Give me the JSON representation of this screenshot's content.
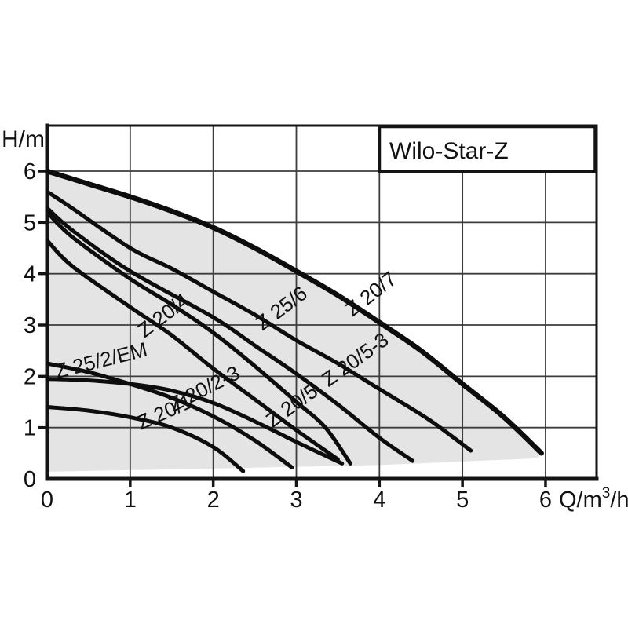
{
  "title_box": {
    "label": "Wilo-Star-Z"
  },
  "axes": {
    "y_axis_label": "H/m",
    "x_axis_unit_pre": "Q/m",
    "x_axis_unit_sup": "3",
    "x_axis_unit_post": "/h"
  },
  "colors": {
    "background": "#ffffff",
    "shade": "#e4e4e4",
    "grid": "#3c3c3c",
    "border": "#141414",
    "curve": "#0d0d0d",
    "text": "#111111"
  },
  "chart_data": {
    "type": "line",
    "title": "Wilo-Star-Z",
    "xlabel": "Q/m³/h",
    "ylabel": "H/m",
    "xlim": [
      0,
      6.61
    ],
    "ylim": [
      0,
      6.89
    ],
    "grid": true,
    "x_ticks": [
      0,
      1,
      2,
      3,
      4,
      5,
      6
    ],
    "y_ticks": [
      0,
      1,
      2,
      3,
      4,
      5,
      6
    ],
    "legend_position": "none",
    "series": [
      {
        "name": "Z 20/7",
        "width": 6.5,
        "points": [
          [
            0,
            6.0
          ],
          [
            0.5,
            5.75
          ],
          [
            1,
            5.5
          ],
          [
            1.5,
            5.22
          ],
          [
            2,
            4.9
          ],
          [
            2.5,
            4.5
          ],
          [
            3,
            4.05
          ],
          [
            3.5,
            3.58
          ],
          [
            4,
            3.05
          ],
          [
            4.5,
            2.5
          ],
          [
            5,
            1.85
          ],
          [
            5.5,
            1.2
          ],
          [
            5.95,
            0.5
          ]
        ]
      },
      {
        "name": "Z 25/6",
        "width": 5,
        "points": [
          [
            0,
            5.6
          ],
          [
            0.3,
            5.28
          ],
          [
            1,
            4.5
          ],
          [
            1.5,
            4.1
          ],
          [
            2,
            3.65
          ],
          [
            2.5,
            3.2
          ],
          [
            3,
            2.7
          ],
          [
            3.5,
            2.25
          ],
          [
            4,
            1.75
          ],
          [
            4.6,
            1.15
          ],
          [
            5.1,
            0.55
          ]
        ]
      },
      {
        "name": "Z 20/5",
        "width": 5,
        "points": [
          [
            0,
            5.28
          ],
          [
            0.3,
            4.85
          ],
          [
            1,
            4.05
          ],
          [
            2,
            3.15
          ],
          [
            2.5,
            2.6
          ],
          [
            3,
            2.05
          ],
          [
            3.5,
            1.45
          ],
          [
            4,
            0.8
          ],
          [
            4.4,
            0.35
          ]
        ]
      },
      {
        "name": "Z 20/5-3",
        "width": 5,
        "points": [
          [
            0,
            5.2
          ],
          [
            0.3,
            4.72
          ],
          [
            1,
            3.9
          ],
          [
            1.5,
            3.4
          ],
          [
            2,
            2.85
          ],
          [
            2.5,
            2.2
          ],
          [
            3,
            1.5
          ],
          [
            3.35,
            1.0
          ],
          [
            3.65,
            0.3
          ]
        ]
      },
      {
        "name": "Z 20/4",
        "width": 5,
        "points": [
          [
            0,
            4.65
          ],
          [
            0.3,
            4.15
          ],
          [
            1,
            3.35
          ],
          [
            1.5,
            2.8
          ],
          [
            2,
            2.15
          ],
          [
            2.5,
            1.55
          ],
          [
            3,
            0.95
          ],
          [
            3.5,
            0.38
          ]
        ]
      },
      {
        "name": "Z 25/2/EM",
        "width": 5,
        "points": [
          [
            0,
            2.25
          ],
          [
            0.5,
            2.08
          ],
          [
            1,
            1.85
          ],
          [
            1.5,
            1.58
          ],
          [
            2,
            1.22
          ],
          [
            2.5,
            0.75
          ],
          [
            2.95,
            0.22
          ]
        ]
      },
      {
        "name": "Z 20/2-3",
        "width": 5,
        "points": [
          [
            0,
            1.95
          ],
          [
            0.5,
            1.92
          ],
          [
            1,
            1.85
          ],
          [
            1.5,
            1.72
          ],
          [
            2,
            1.48
          ],
          [
            2.5,
            1.12
          ],
          [
            3,
            0.72
          ],
          [
            3.55,
            0.3
          ]
        ]
      },
      {
        "name": "Z 20/1",
        "width": 5,
        "points": [
          [
            0,
            1.4
          ],
          [
            0.5,
            1.33
          ],
          [
            1,
            1.2
          ],
          [
            1.5,
            1.0
          ],
          [
            2,
            0.62
          ],
          [
            2.36,
            0.15
          ]
        ]
      }
    ],
    "shaded_region": {
      "description": "light gray envelope under Z 20/7 curve down to just above the x-axis",
      "bottom_edge": [
        [
          0,
          0.14
        ],
        [
          2,
          0.2
        ],
        [
          4,
          0.27
        ],
        [
          5.9,
          0.4
        ]
      ]
    },
    "curve_labels": [
      {
        "text": "Z 20/7",
        "q": 3.95,
        "h": 3.5,
        "angle": -38
      },
      {
        "text": "Z 25/6",
        "q": 2.87,
        "h": 3.22,
        "angle": -37
      },
      {
        "text": "Z 20/4",
        "q": 1.45,
        "h": 3.08,
        "angle": -37
      },
      {
        "text": "Z 20/5, Z 20/5-3",
        "q": 3.42,
        "h": 1.82,
        "angle": -36
      },
      {
        "text": "Z 25/2/EM",
        "q": 0.67,
        "h": 2.18,
        "angle": -14
      },
      {
        "text": "Z 20/2-3",
        "q": 1.93,
        "h": 1.64,
        "angle": -27
      },
      {
        "text": "Z 20/1",
        "q": 1.45,
        "h": 1.18,
        "angle": -24
      }
    ]
  }
}
